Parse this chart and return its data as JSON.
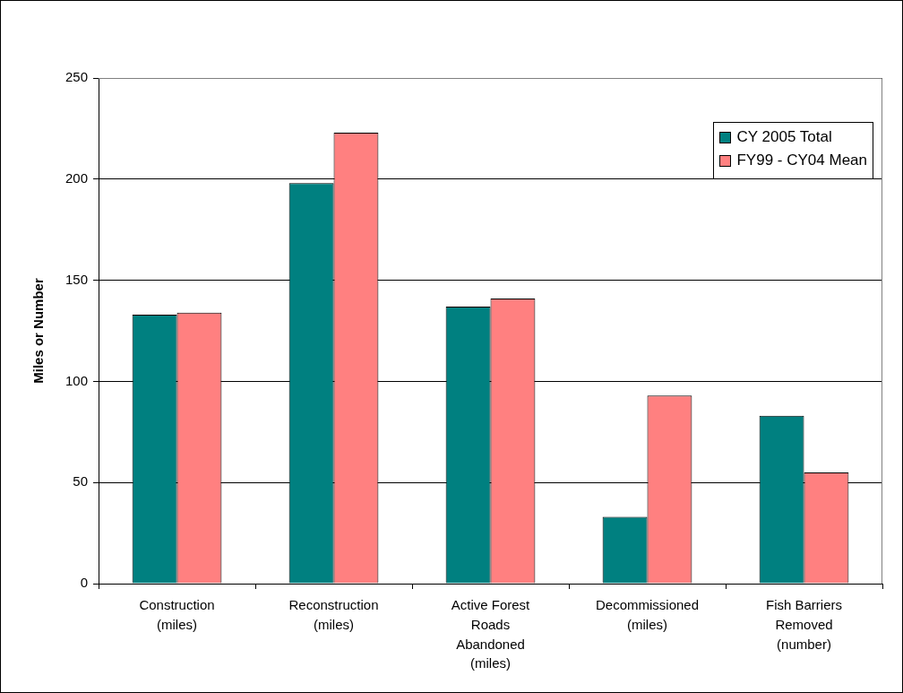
{
  "chart_data": {
    "type": "bar",
    "ylabel": "Miles or Number",
    "categories": [
      "Construction\n(miles)",
      "Reconstruction\n(miles)",
      "Active Forest\nRoads\nAbandoned\n(miles)",
      "Decommissioned\n(miles)",
      "Fish Barriers\nRemoved\n(number)"
    ],
    "series": [
      {
        "name": "CY 2005 Total",
        "color": "#008080",
        "values": [
          133,
          198,
          137,
          33,
          83
        ]
      },
      {
        "name": "FY99 - CY04 Mean",
        "color": "#ff8080",
        "values": [
          134,
          223,
          141,
          93,
          55
        ]
      }
    ],
    "ylim": [
      0,
      250
    ],
    "yticks": [
      0,
      50,
      100,
      150,
      200,
      250
    ],
    "grid": "y",
    "legend": "top right"
  }
}
